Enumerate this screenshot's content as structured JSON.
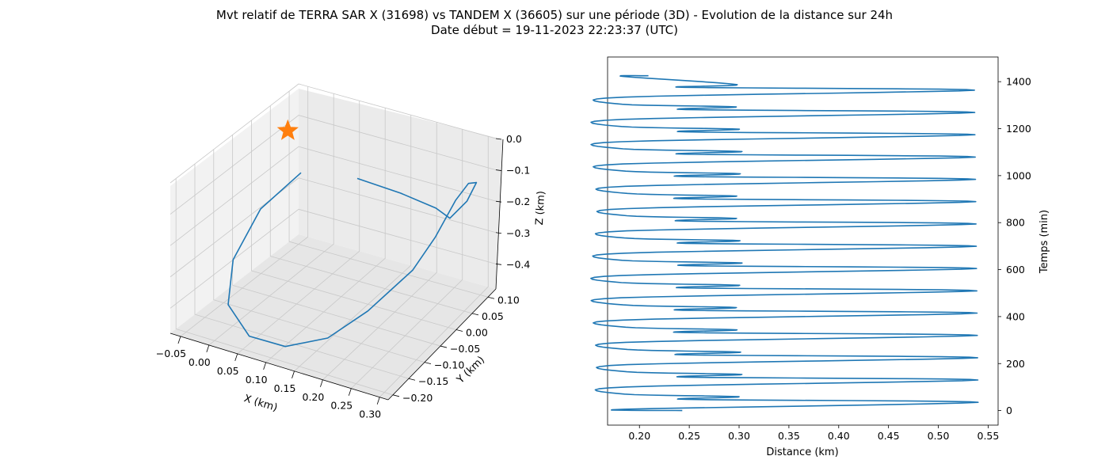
{
  "title_line1": "Mvt relatif de TERRA SAR X (31698) vs TANDEM X (36605) sur une période (3D) - Evolution de la distance sur 24h",
  "title_line2": "Date début = 19-11-2023 22:23:37 (UTC)",
  "chart_data": [
    {
      "type": "line",
      "subtype": "3d",
      "xlabel": "X (km)",
      "ylabel": "Y (km)",
      "zlabel": "Z (km)",
      "xticks": [
        "−0.05",
        "0.00",
        "0.05",
        "0.10",
        "0.15",
        "0.20",
        "0.25",
        "0.30"
      ],
      "yticks": [
        "−0.20",
        "−0.15",
        "−0.10",
        "−0.05",
        "0.00",
        "0.05",
        "0.10"
      ],
      "zticks": [
        "0.0",
        "−0.1",
        "−0.2",
        "−0.3",
        "−0.4"
      ],
      "line_color": "#1f77b4",
      "marker": {
        "shape": "star",
        "color": "#ff7f0e",
        "x": 0,
        "y": 0,
        "z": 0
      },
      "grid": true,
      "series": [
        {
          "x": [
            -0.038,
            -0.065,
            -0.06,
            -0.015,
            0.055,
            0.125,
            0.185,
            0.23,
            0.27,
            0.282,
            0.29,
            0.296,
            0.302,
            0.299,
            0.285,
            0.24,
            0.16,
            0.07
          ],
          "y": [
            0.09,
            0.02,
            -0.06,
            -0.14,
            -0.19,
            -0.2,
            -0.175,
            -0.13,
            -0.06,
            -0.01,
            0.04,
            0.07,
            0.085,
            0.06,
            0.03,
            0.06,
            0.08,
            0.09
          ],
          "z": [
            -0.237,
            -0.3,
            -0.385,
            -0.43,
            -0.445,
            -0.43,
            -0.395,
            -0.33,
            -0.25,
            -0.19,
            -0.12,
            -0.095,
            -0.105,
            -0.14,
            -0.17,
            -0.19,
            -0.2,
            -0.205
          ]
        }
      ]
    },
    {
      "type": "line",
      "xlabel": "Distance (km)",
      "ylabel": "Temps (min)",
      "xlim": [
        0.168,
        0.56
      ],
      "ylim": [
        -62,
        1505
      ],
      "xticks": [
        0.2,
        0.25,
        0.3,
        0.35,
        0.4,
        0.45,
        0.5,
        0.55
      ],
      "yticks": [
        0,
        200,
        400,
        600,
        800,
        1000,
        1200,
        1400
      ],
      "line_color": "#1f77b4",
      "series": [
        {
          "start": {
            "x": 0.243,
            "t": 0
          },
          "period_min": 94.9,
          "cycles": 15,
          "cycle_pattern_t": [
            0.0,
            0.37,
            0.5,
            0.62,
            1.0
          ],
          "cycle_pattern_x_lo": 0.185,
          "cycle_pattern_x_hi": 0.54,
          "cycle_pattern_x_mid_lo": 0.245,
          "cycle_pattern_x_mid_hi": 0.3
        }
      ]
    }
  ]
}
